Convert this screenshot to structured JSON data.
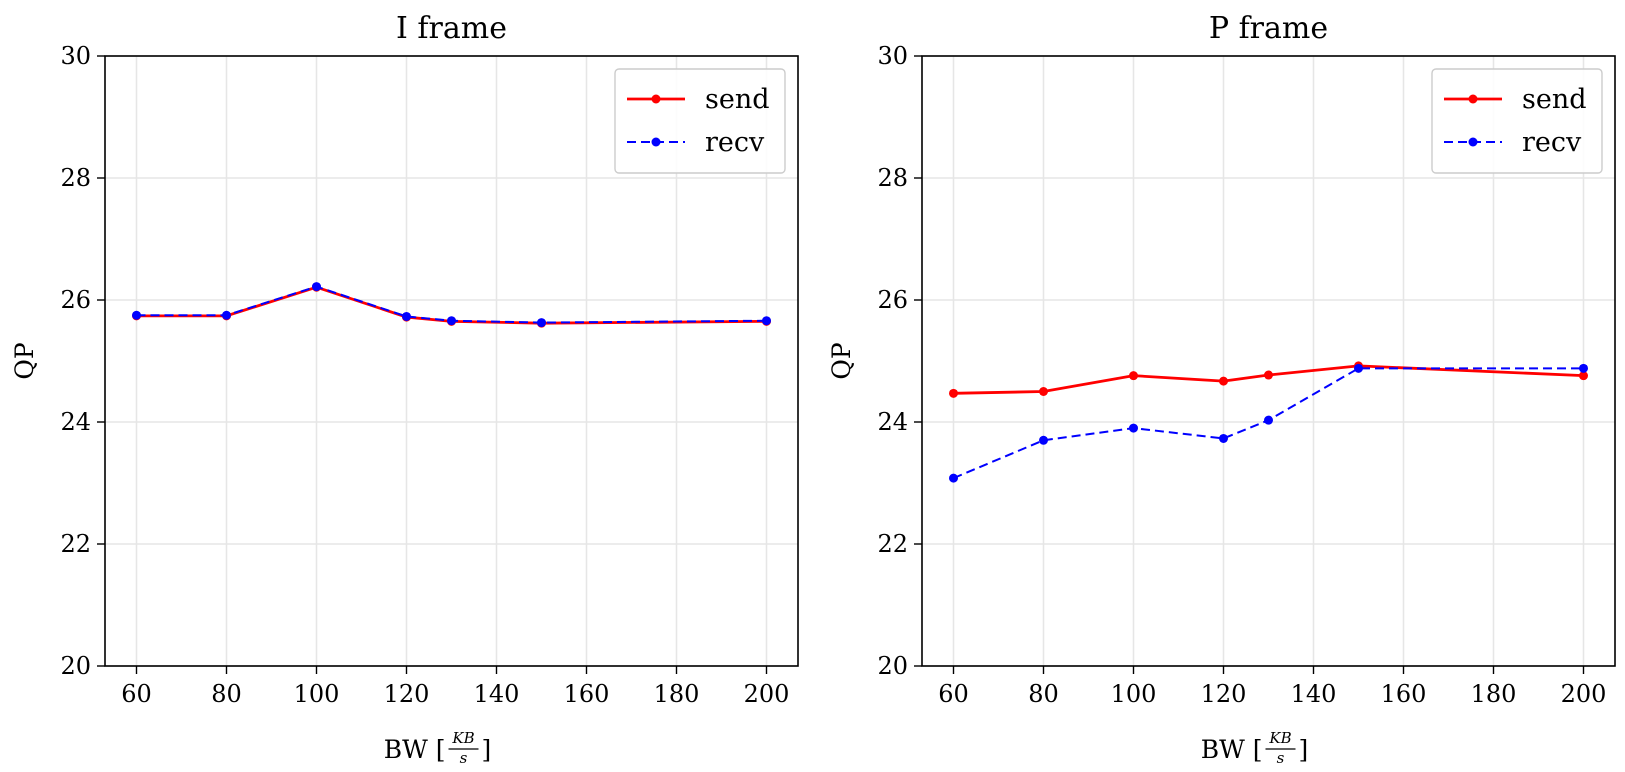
{
  "chart_data": [
    {
      "type": "line",
      "title": "I frame",
      "xlabel_main": "BW [",
      "xlabel_frac_num": "KB",
      "xlabel_frac_den": "s",
      "xlabel_close": "]",
      "ylabel": "QP",
      "xlim": [
        53,
        207
      ],
      "ylim": [
        20,
        30
      ],
      "xticks": [
        60,
        80,
        100,
        120,
        140,
        160,
        180,
        200
      ],
      "yticks": [
        20,
        22,
        24,
        26,
        28,
        30
      ],
      "grid": true,
      "legend_position": "top-right",
      "series": [
        {
          "name": "send",
          "color": "#ff0000",
          "style": "solid",
          "x": [
            60,
            80,
            100,
            120,
            130,
            150,
            200
          ],
          "y": [
            25.74,
            25.74,
            26.21,
            25.72,
            25.65,
            25.62,
            25.65
          ]
        },
        {
          "name": "recv",
          "color": "#0000ff",
          "style": "dashed",
          "x": [
            60,
            80,
            100,
            120,
            130,
            150,
            200
          ],
          "y": [
            25.75,
            25.75,
            26.22,
            25.73,
            25.66,
            25.63,
            25.66
          ]
        }
      ]
    },
    {
      "type": "line",
      "title": "P frame",
      "xlabel_main": "BW [",
      "xlabel_frac_num": "KB",
      "xlabel_frac_den": "s",
      "xlabel_close": "]",
      "ylabel": "QP",
      "xlim": [
        53,
        207
      ],
      "ylim": [
        20,
        30
      ],
      "xticks": [
        60,
        80,
        100,
        120,
        140,
        160,
        180,
        200
      ],
      "yticks": [
        20,
        22,
        24,
        26,
        28,
        30
      ],
      "grid": true,
      "legend_position": "top-right",
      "series": [
        {
          "name": "send",
          "color": "#ff0000",
          "style": "solid",
          "x": [
            60,
            80,
            100,
            120,
            130,
            150,
            200
          ],
          "y": [
            24.47,
            24.5,
            24.76,
            24.67,
            24.77,
            24.92,
            24.76
          ]
        },
        {
          "name": "recv",
          "color": "#0000ff",
          "style": "dashed",
          "x": [
            60,
            80,
            100,
            120,
            130,
            150,
            200
          ],
          "y": [
            23.08,
            23.7,
            23.9,
            23.73,
            24.03,
            24.88,
            24.88
          ]
        }
      ]
    }
  ]
}
